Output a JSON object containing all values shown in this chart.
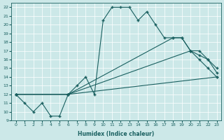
{
  "xlabel": "Humidex (Indice chaleur)",
  "bg_color": "#cce8e8",
  "line_color": "#1a6060",
  "grid_color": "#ffffff",
  "ylim": [
    9,
    22.5
  ],
  "xlim": [
    -0.5,
    23.5
  ],
  "yticks": [
    9,
    10,
    11,
    12,
    13,
    14,
    15,
    16,
    17,
    18,
    19,
    20,
    21,
    22
  ],
  "xticks": [
    0,
    1,
    2,
    3,
    4,
    5,
    6,
    7,
    8,
    9,
    10,
    11,
    12,
    13,
    14,
    15,
    16,
    17,
    18,
    19,
    20,
    21,
    22,
    23
  ],
  "line1_x": [
    0,
    1,
    2,
    3,
    4,
    5,
    6,
    7,
    8,
    9,
    10,
    11,
    12,
    13,
    14,
    15,
    16,
    17,
    18,
    19,
    20,
    21,
    22,
    23
  ],
  "line1_y": [
    12,
    11,
    10,
    11,
    9.5,
    9.5,
    12,
    13,
    14,
    12,
    20.5,
    22,
    22,
    22,
    20.5,
    21.5,
    20,
    18.5,
    18.5,
    18.5,
    17,
    16,
    15,
    14
  ],
  "line2_x": [
    0,
    6,
    23
  ],
  "line2_y": [
    12,
    12,
    14
  ],
  "line3_x": [
    0,
    6,
    20,
    21,
    22,
    23
  ],
  "line3_y": [
    12,
    12,
    17,
    17,
    16,
    15
  ],
  "line4_x": [
    0,
    6,
    18,
    19,
    20,
    21,
    22,
    23
  ],
  "line4_y": [
    12,
    12,
    18.5,
    18.5,
    17,
    16.5,
    16,
    14.5
  ]
}
